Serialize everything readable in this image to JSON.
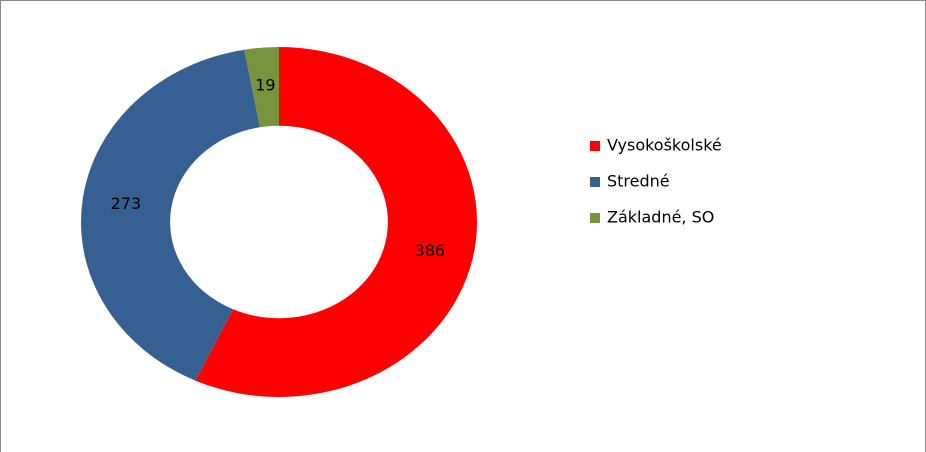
{
  "chart_data": {
    "type": "donut",
    "categories": [
      "Vysokoškolské",
      "Stredné",
      "Základné, SO"
    ],
    "values": [
      386,
      273,
      19
    ],
    "colors": [
      "#ff0000",
      "#376092",
      "#77933c"
    ],
    "legend": "right"
  }
}
